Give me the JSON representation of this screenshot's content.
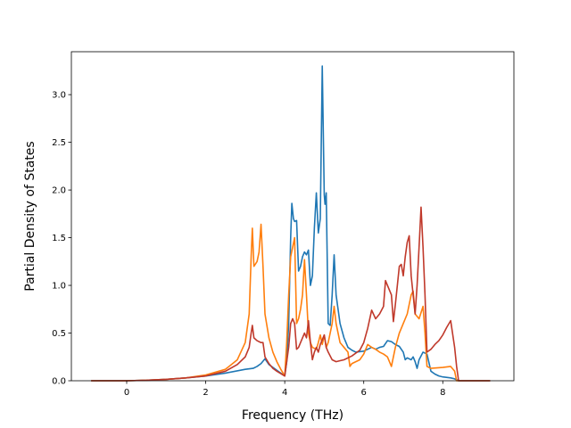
{
  "chart_data": {
    "type": "line",
    "title": "",
    "xlabel": "Frequency (THz)",
    "ylabel": "Partial Density of States",
    "xlim": [
      -1.4,
      9.8
    ],
    "ylim": [
      0,
      3.45
    ],
    "xticks": [
      0,
      2,
      4,
      6,
      8
    ],
    "xtick_labels": [
      "0",
      "2",
      "4",
      "6",
      "8"
    ],
    "yticks": [
      0.0,
      0.5,
      1.0,
      1.5,
      2.0,
      2.5,
      3.0
    ],
    "ytick_labels": [
      "0.0",
      "0.5",
      "1.0",
      "1.5",
      "2.0",
      "2.5",
      "3.0"
    ],
    "grid": false,
    "legend": "none",
    "series": [
      {
        "color": "#1f77b4",
        "points": [
          [
            -0.9,
            0
          ],
          [
            0,
            0
          ],
          [
            0.5,
            0.005
          ],
          [
            1,
            0.015
          ],
          [
            1.5,
            0.03
          ],
          [
            2,
            0.05
          ],
          [
            2.5,
            0.08
          ],
          [
            3.0,
            0.12
          ],
          [
            3.2,
            0.13
          ],
          [
            3.3,
            0.15
          ],
          [
            3.4,
            0.18
          ],
          [
            3.5,
            0.23
          ],
          [
            3.6,
            0.17
          ],
          [
            3.8,
            0.11
          ],
          [
            4.0,
            0.05
          ],
          [
            4.05,
            0.2
          ],
          [
            4.1,
            0.6
          ],
          [
            4.15,
            1.5
          ],
          [
            4.18,
            1.86
          ],
          [
            4.22,
            1.7
          ],
          [
            4.25,
            1.67
          ],
          [
            4.3,
            1.68
          ],
          [
            4.35,
            1.15
          ],
          [
            4.4,
            1.2
          ],
          [
            4.45,
            1.3
          ],
          [
            4.5,
            1.35
          ],
          [
            4.55,
            1.32
          ],
          [
            4.6,
            1.37
          ],
          [
            4.65,
            1.0
          ],
          [
            4.7,
            1.1
          ],
          [
            4.75,
            1.6
          ],
          [
            4.8,
            1.97
          ],
          [
            4.85,
            1.55
          ],
          [
            4.9,
            1.7
          ],
          [
            4.95,
            3.3
          ],
          [
            5.0,
            1.95
          ],
          [
            5.02,
            1.85
          ],
          [
            5.05,
            1.97
          ],
          [
            5.1,
            0.6
          ],
          [
            5.15,
            0.58
          ],
          [
            5.2,
            0.9
          ],
          [
            5.25,
            1.32
          ],
          [
            5.3,
            0.9
          ],
          [
            5.4,
            0.6
          ],
          [
            5.5,
            0.45
          ],
          [
            5.6,
            0.35
          ],
          [
            5.7,
            0.32
          ],
          [
            5.8,
            0.3
          ],
          [
            6.0,
            0.31
          ],
          [
            6.2,
            0.35
          ],
          [
            6.3,
            0.33
          ],
          [
            6.4,
            0.35
          ],
          [
            6.5,
            0.36
          ],
          [
            6.6,
            0.42
          ],
          [
            6.7,
            0.41
          ],
          [
            6.8,
            0.38
          ],
          [
            6.9,
            0.36
          ],
          [
            7.0,
            0.3
          ],
          [
            7.05,
            0.22
          ],
          [
            7.1,
            0.24
          ],
          [
            7.2,
            0.22
          ],
          [
            7.25,
            0.25
          ],
          [
            7.3,
            0.2
          ],
          [
            7.35,
            0.13
          ],
          [
            7.4,
            0.22
          ],
          [
            7.5,
            0.3
          ],
          [
            7.6,
            0.28
          ],
          [
            7.7,
            0.1
          ],
          [
            7.8,
            0.07
          ],
          [
            7.9,
            0.05
          ],
          [
            8.0,
            0.04
          ],
          [
            8.2,
            0.03
          ],
          [
            8.3,
            0.02
          ],
          [
            8.4,
            0.0
          ],
          [
            9.2,
            0.0
          ]
        ]
      },
      {
        "color": "#ff7f0e",
        "points": [
          [
            -0.9,
            0
          ],
          [
            0,
            0
          ],
          [
            0.5,
            0.005
          ],
          [
            1,
            0.015
          ],
          [
            1.5,
            0.03
          ],
          [
            2,
            0.06
          ],
          [
            2.5,
            0.12
          ],
          [
            2.8,
            0.22
          ],
          [
            3.0,
            0.4
          ],
          [
            3.1,
            0.7
          ],
          [
            3.15,
            1.3
          ],
          [
            3.18,
            1.6
          ],
          [
            3.22,
            1.2
          ],
          [
            3.3,
            1.25
          ],
          [
            3.35,
            1.35
          ],
          [
            3.4,
            1.64
          ],
          [
            3.45,
            1.2
          ],
          [
            3.5,
            0.7
          ],
          [
            3.6,
            0.45
          ],
          [
            3.7,
            0.3
          ],
          [
            3.8,
            0.2
          ],
          [
            3.9,
            0.12
          ],
          [
            4.0,
            0.05
          ],
          [
            4.05,
            0.4
          ],
          [
            4.1,
            0.9
          ],
          [
            4.15,
            1.3
          ],
          [
            4.2,
            1.4
          ],
          [
            4.25,
            1.5
          ],
          [
            4.3,
            0.6
          ],
          [
            4.35,
            0.65
          ],
          [
            4.4,
            0.75
          ],
          [
            4.45,
            0.9
          ],
          [
            4.5,
            1.27
          ],
          [
            4.55,
            0.9
          ],
          [
            4.6,
            0.5
          ],
          [
            4.65,
            0.4
          ],
          [
            4.7,
            0.35
          ],
          [
            4.8,
            0.33
          ],
          [
            4.85,
            0.4
          ],
          [
            4.9,
            0.48
          ],
          [
            4.95,
            0.38
          ],
          [
            5.0,
            0.48
          ],
          [
            5.05,
            0.35
          ],
          [
            5.1,
            0.4
          ],
          [
            5.2,
            0.6
          ],
          [
            5.25,
            0.78
          ],
          [
            5.3,
            0.6
          ],
          [
            5.4,
            0.4
          ],
          [
            5.5,
            0.35
          ],
          [
            5.6,
            0.3
          ],
          [
            5.65,
            0.15
          ],
          [
            5.7,
            0.18
          ],
          [
            5.8,
            0.2
          ],
          [
            5.9,
            0.22
          ],
          [
            6.0,
            0.28
          ],
          [
            6.1,
            0.38
          ],
          [
            6.2,
            0.35
          ],
          [
            6.3,
            0.33
          ],
          [
            6.4,
            0.3
          ],
          [
            6.5,
            0.28
          ],
          [
            6.6,
            0.25
          ],
          [
            6.7,
            0.15
          ],
          [
            6.8,
            0.35
          ],
          [
            6.9,
            0.5
          ],
          [
            7.0,
            0.6
          ],
          [
            7.1,
            0.7
          ],
          [
            7.2,
            0.9
          ],
          [
            7.25,
            0.94
          ],
          [
            7.3,
            0.7
          ],
          [
            7.4,
            0.65
          ],
          [
            7.5,
            0.78
          ],
          [
            7.55,
            0.5
          ],
          [
            7.6,
            0.15
          ],
          [
            7.7,
            0.13
          ],
          [
            8.0,
            0.14
          ],
          [
            8.2,
            0.15
          ],
          [
            8.3,
            0.1
          ],
          [
            8.35,
            0.0
          ],
          [
            9.2,
            0.0
          ]
        ]
      },
      {
        "color": "#c0392b",
        "points": [
          [
            -0.9,
            0
          ],
          [
            0,
            0
          ],
          [
            0.5,
            0.005
          ],
          [
            1,
            0.015
          ],
          [
            1.5,
            0.03
          ],
          [
            2,
            0.05
          ],
          [
            2.5,
            0.1
          ],
          [
            2.8,
            0.17
          ],
          [
            3.0,
            0.25
          ],
          [
            3.1,
            0.35
          ],
          [
            3.15,
            0.5
          ],
          [
            3.18,
            0.58
          ],
          [
            3.22,
            0.45
          ],
          [
            3.3,
            0.42
          ],
          [
            3.4,
            0.4
          ],
          [
            3.45,
            0.4
          ],
          [
            3.5,
            0.25
          ],
          [
            3.6,
            0.18
          ],
          [
            3.7,
            0.13
          ],
          [
            3.8,
            0.1
          ],
          [
            4.0,
            0.05
          ],
          [
            4.1,
            0.35
          ],
          [
            4.15,
            0.6
          ],
          [
            4.2,
            0.65
          ],
          [
            4.25,
            0.6
          ],
          [
            4.3,
            0.33
          ],
          [
            4.35,
            0.35
          ],
          [
            4.4,
            0.4
          ],
          [
            4.5,
            0.5
          ],
          [
            4.55,
            0.45
          ],
          [
            4.6,
            0.63
          ],
          [
            4.65,
            0.4
          ],
          [
            4.7,
            0.22
          ],
          [
            4.75,
            0.3
          ],
          [
            4.8,
            0.35
          ],
          [
            4.85,
            0.3
          ],
          [
            4.9,
            0.38
          ],
          [
            4.95,
            0.43
          ],
          [
            5.0,
            0.48
          ],
          [
            5.05,
            0.35
          ],
          [
            5.1,
            0.3
          ],
          [
            5.2,
            0.22
          ],
          [
            5.3,
            0.2
          ],
          [
            5.5,
            0.22
          ],
          [
            5.7,
            0.26
          ],
          [
            5.9,
            0.32
          ],
          [
            6.0,
            0.4
          ],
          [
            6.1,
            0.55
          ],
          [
            6.2,
            0.74
          ],
          [
            6.3,
            0.65
          ],
          [
            6.4,
            0.7
          ],
          [
            6.5,
            0.78
          ],
          [
            6.55,
            1.05
          ],
          [
            6.6,
            1.0
          ],
          [
            6.7,
            0.9
          ],
          [
            6.75,
            0.62
          ],
          [
            6.8,
            0.8
          ],
          [
            6.85,
            1.0
          ],
          [
            6.9,
            1.2
          ],
          [
            6.95,
            1.22
          ],
          [
            7.0,
            1.1
          ],
          [
            7.05,
            1.3
          ],
          [
            7.1,
            1.45
          ],
          [
            7.15,
            1.52
          ],
          [
            7.2,
            1.1
          ],
          [
            7.3,
            0.7
          ],
          [
            7.35,
            1.0
          ],
          [
            7.4,
            1.4
          ],
          [
            7.45,
            1.82
          ],
          [
            7.5,
            1.4
          ],
          [
            7.55,
            0.9
          ],
          [
            7.6,
            0.3
          ],
          [
            7.7,
            0.33
          ],
          [
            7.8,
            0.38
          ],
          [
            7.9,
            0.42
          ],
          [
            8.0,
            0.48
          ],
          [
            8.1,
            0.56
          ],
          [
            8.2,
            0.63
          ],
          [
            8.3,
            0.35
          ],
          [
            8.35,
            0.15
          ],
          [
            8.4,
            0.0
          ],
          [
            9.2,
            0.0
          ]
        ]
      }
    ]
  }
}
